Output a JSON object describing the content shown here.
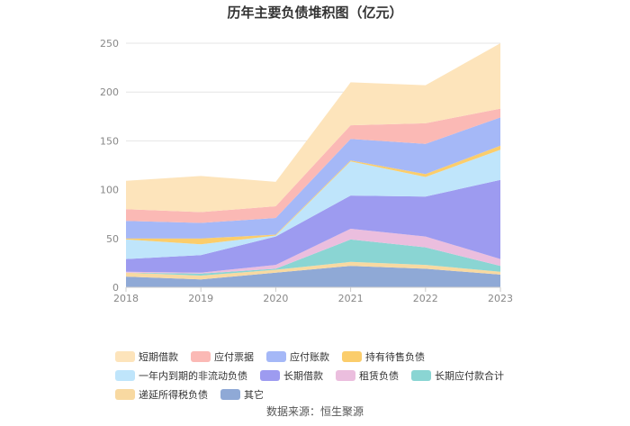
{
  "chart_data": {
    "type": "area",
    "stacked": true,
    "title": "历年主要负债堆积图（亿元）",
    "categories": [
      "2018",
      "2019",
      "2020",
      "2021",
      "2022",
      "2023"
    ],
    "ylim": [
      0,
      250
    ],
    "yticks": [
      0,
      50,
      100,
      150,
      200,
      250
    ],
    "grid": true,
    "legend_position": "bottom",
    "series": [
      {
        "name": "其它",
        "color": "#8fa9d6",
        "values": [
          11,
          8,
          15,
          22,
          19,
          13
        ]
      },
      {
        "name": "递延所得税负债",
        "color": "#f8d9a1",
        "values": [
          4,
          4,
          3,
          4,
          4,
          3
        ]
      },
      {
        "name": "长期应付款合计",
        "color": "#8ad5d3",
        "values": [
          0,
          2,
          1,
          23,
          18,
          6
        ]
      },
      {
        "name": "租赁负债",
        "color": "#ebbede",
        "values": [
          1,
          1,
          4,
          11,
          11,
          7
        ]
      },
      {
        "name": "长期借款",
        "color": "#9d9bf0",
        "values": [
          13,
          18,
          29,
          34,
          41,
          81
        ]
      },
      {
        "name": "一年内到期的非流动负债",
        "color": "#bfe5fb",
        "values": [
          20,
          11,
          1,
          35,
          20,
          31
        ]
      },
      {
        "name": "持有待售负债",
        "color": "#fbcd6b",
        "values": [
          1,
          6,
          1,
          1,
          3,
          4
        ]
      },
      {
        "name": "应付账款",
        "color": "#a5b8f7",
        "values": [
          18,
          16,
          17,
          22,
          31,
          29
        ]
      },
      {
        "name": "应付票据",
        "color": "#fbb9b5",
        "values": [
          12,
          11,
          12,
          14,
          21,
          9
        ]
      },
      {
        "name": "短期借款",
        "color": "#fde4bb",
        "values": [
          29,
          37,
          25,
          44,
          39,
          67
        ]
      }
    ],
    "legend_order": [
      "短期借款",
      "应付票据",
      "应付账款",
      "持有待售负债",
      "一年内到期的非流动负债",
      "长期借款",
      "租赁负债",
      "长期应付款合计",
      "递延所得税负债",
      "其它"
    ]
  },
  "source_text": "数据来源：恒生聚源"
}
